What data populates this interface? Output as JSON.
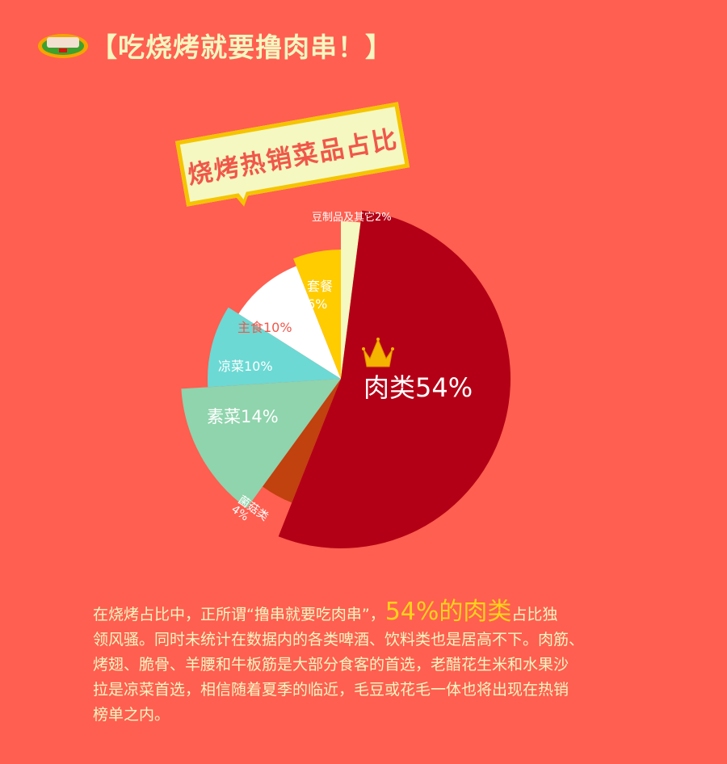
{
  "header": {
    "title": "【吃烧烤就要撸肉串！】",
    "logo_icon": "bbq-plate-icon"
  },
  "banner": {
    "text": "烧烤热销菜品占比"
  },
  "chart_data": {
    "type": "pie",
    "title": "烧烤热销菜品占比",
    "slices": [
      {
        "label": "豆制品及其它",
        "value": 2,
        "display": "豆制品及其它2%",
        "color": "#f5f8c0"
      },
      {
        "label": "肉类",
        "value": 54,
        "display": "肉类54%",
        "color": "#b30016"
      },
      {
        "label": "菌菇类",
        "value": 4,
        "display": "菌菇类",
        "display2": "4%",
        "color": "#c1410f"
      },
      {
        "label": "素菜",
        "value": 14,
        "display": "素菜14%",
        "color": "#8fd4ac"
      },
      {
        "label": "凉菜",
        "value": 10,
        "display": "凉菜10%",
        "color": "#6cd9d4"
      },
      {
        "label": "主食",
        "value": 10,
        "display": "主食10%",
        "color": "#ffffff"
      },
      {
        "label": "套餐",
        "value": 6,
        "display": "套餐",
        "display2": "6%",
        "color": "#ffcc00"
      }
    ],
    "highlight_icon": "crown-icon"
  },
  "paragraph": {
    "line1_prefix": "在烧烤占比中，正所谓“撸串就要吃肉串”，",
    "line1_highlight": "54%的肉类",
    "line1_suffix": "占比独",
    "line2": "领风骚。同时未统计在数据内的各类啤酒、饮料类也是居高不下。肉筋、",
    "line3": "烤翅、脆骨、羊腰和牛板筋是大部分食客的首选，老醋花生米和水果沙",
    "line4": "拉是凉菜首选，相信随着夏季的临近，毛豆或花毛一体也将出现在热销",
    "line5": "榜单之内。"
  }
}
